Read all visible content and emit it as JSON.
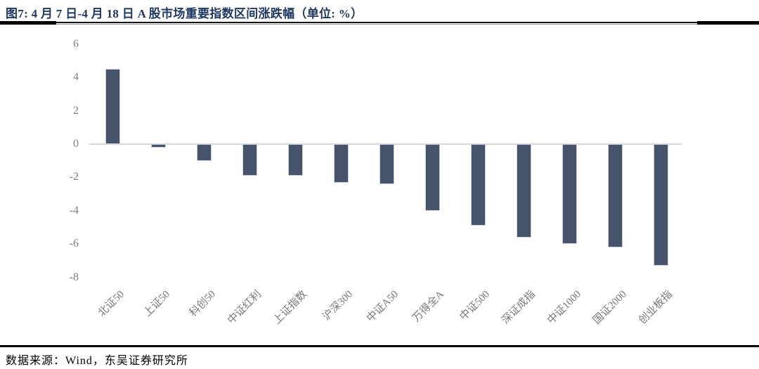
{
  "header": {
    "title": "图7: 4 月 7 日-4 月 18 日 A 股市场重要指数区间涨跌幅（单位: %）"
  },
  "footer": {
    "source": "数据来源：Wind，东吴证券研究所"
  },
  "chart_data": {
    "type": "bar",
    "title": "4月7日-4月18日A股市场重要指数区间涨跌幅",
    "unit": "%",
    "categories": [
      "北证50",
      "上证50",
      "科创50",
      "中证红利",
      "上证指数",
      "沪深300",
      "中证A50",
      "万得全A",
      "中证500",
      "深证成指",
      "中证1000",
      "国证2000",
      "创业板指"
    ],
    "values": [
      4.5,
      -0.2,
      -1.0,
      -1.9,
      -1.9,
      -2.3,
      -2.4,
      -4.0,
      -4.9,
      -5.6,
      -6.0,
      -6.2,
      -7.3
    ],
    "xlabel": "",
    "ylabel": "",
    "yticks": [
      6,
      4,
      2,
      0,
      -2,
      -4,
      -6,
      -8
    ],
    "ylim": [
      -8,
      6
    ],
    "grid": "zero-line-only",
    "legend": "none",
    "x_tick_rotation_deg": 45,
    "colors": {
      "bar": "#47536B",
      "bar_border": "#C9CFDA",
      "zero_line": "#D9D9D9",
      "title": "#1F3864",
      "tick_label": "#7F7F7F",
      "rule": "#000000"
    }
  }
}
